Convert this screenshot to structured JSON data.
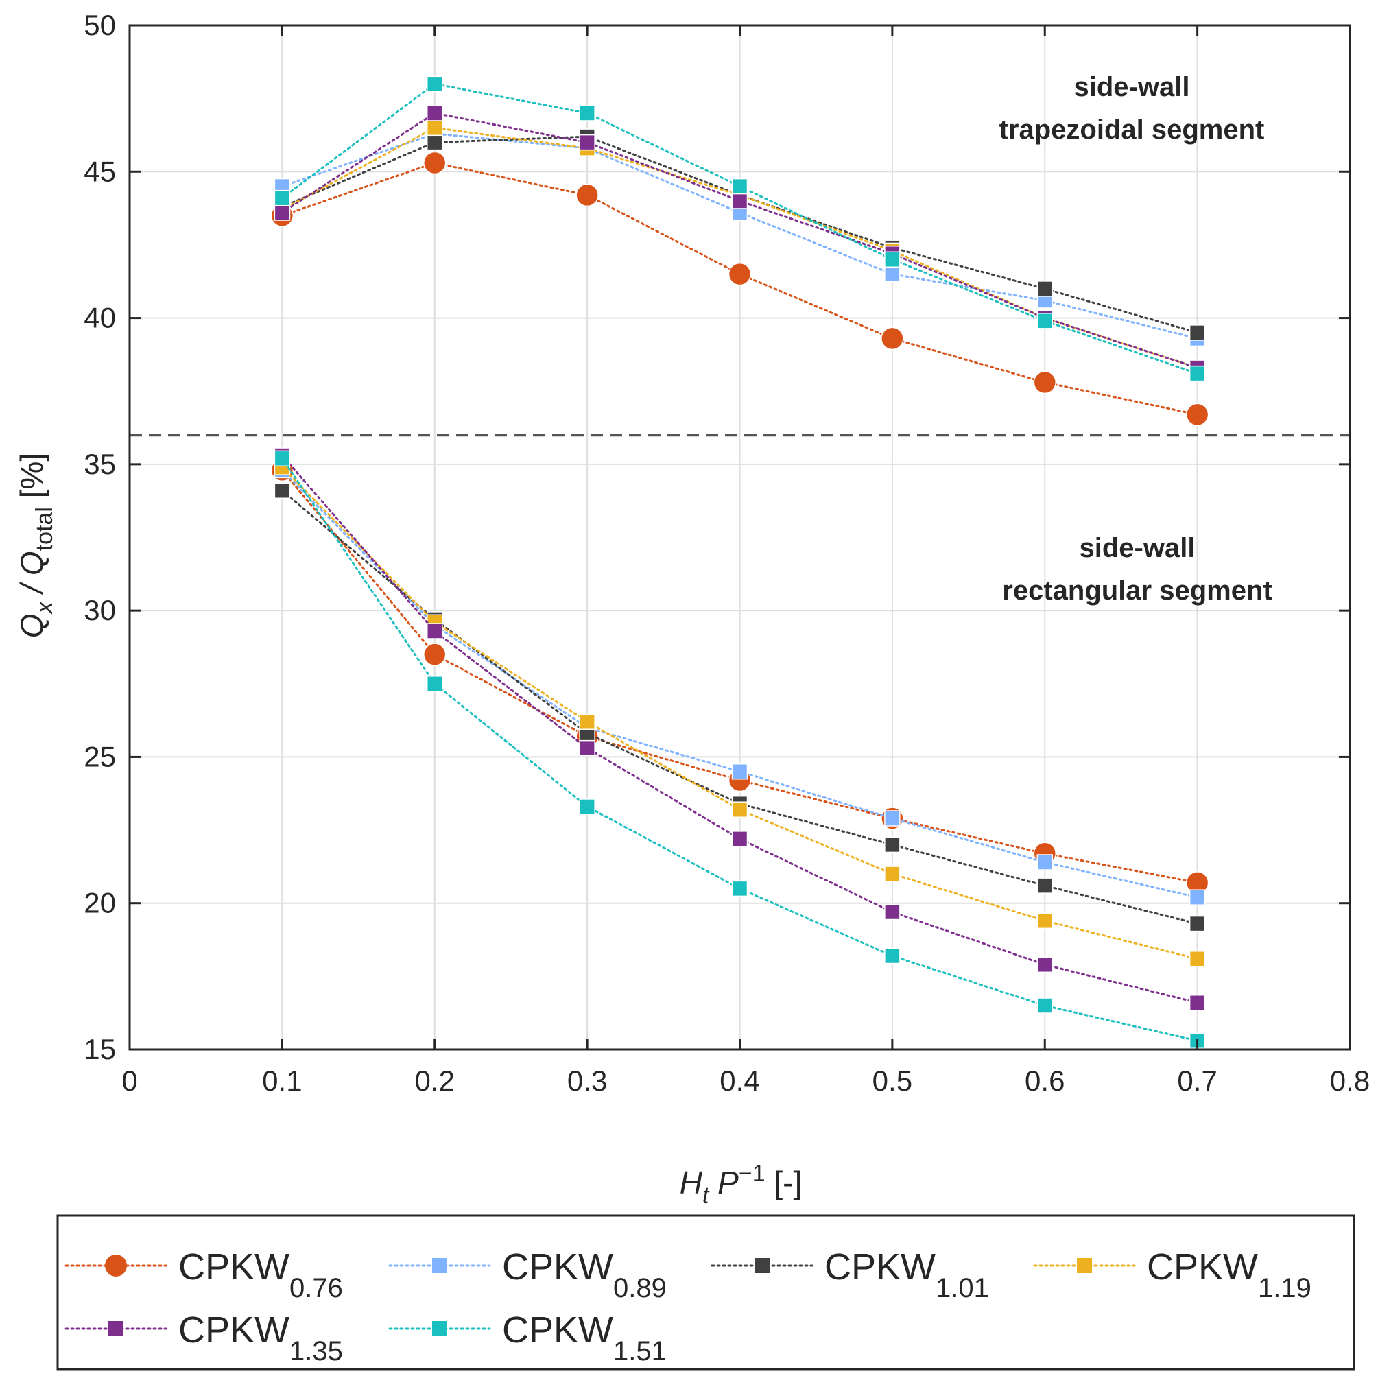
{
  "chart_data": {
    "type": "line",
    "title": "",
    "xlabel": {
      "base": "H",
      "sub": "t",
      "mid": " P",
      "sup": "−1",
      "tail": " [-]"
    },
    "ylabel": {
      "q1": "Q",
      "s1": "x",
      "mid": " / Q",
      "s2": "total",
      "tail": " [%]"
    },
    "xlim": [
      0,
      0.8
    ],
    "ylim": [
      15,
      50
    ],
    "xticks": [
      0,
      0.1,
      0.2,
      0.3,
      0.4,
      0.5,
      0.6,
      0.7,
      0.8
    ],
    "yticks": [
      15,
      20,
      25,
      30,
      35,
      40,
      45,
      50
    ],
    "xtick_labels": [
      "0",
      "0.1",
      "0.2",
      "0.3",
      "0.4",
      "0.5",
      "0.6",
      "0.7",
      "0.8"
    ],
    "ytick_labels": [
      "15",
      "20",
      "25",
      "30",
      "35",
      "40",
      "45",
      "50"
    ],
    "grid": true,
    "separator_y": 36,
    "x": [
      0.1,
      0.2,
      0.3,
      0.4,
      0.5,
      0.6,
      0.7
    ],
    "annotations": [
      {
        "lines": [
          "side-wall",
          "trapezoidal segment"
        ]
      },
      {
        "lines": [
          "side-wall",
          "rectangular segment"
        ]
      }
    ],
    "series": [
      {
        "name": "CPKW",
        "sub": "0.76",
        "color": "#D95319",
        "marker": "circle",
        "trapezoidal": [
          43.5,
          45.3,
          44.2,
          41.5,
          39.3,
          37.8,
          36.7
        ],
        "rectangular": [
          34.8,
          28.5,
          25.7,
          24.2,
          22.9,
          21.7,
          20.7
        ]
      },
      {
        "name": "CPKW",
        "sub": "0.89",
        "color": "#80B3FF",
        "marker": "square",
        "trapezoidal": [
          44.5,
          46.3,
          45.8,
          43.6,
          41.5,
          40.6,
          39.3
        ],
        "rectangular": [
          34.8,
          29.5,
          26.0,
          24.5,
          22.9,
          21.4,
          20.2
        ]
      },
      {
        "name": "CPKW",
        "sub": "1.01",
        "color": "#404040",
        "marker": "square",
        "trapezoidal": [
          43.8,
          46.0,
          46.2,
          44.2,
          42.4,
          41.0,
          39.5
        ],
        "rectangular": [
          34.1,
          29.7,
          25.8,
          23.4,
          22.0,
          20.6,
          19.3
        ]
      },
      {
        "name": "CPKW",
        "sub": "1.19",
        "color": "#EDB120",
        "marker": "square",
        "trapezoidal": [
          43.7,
          46.5,
          45.8,
          44.2,
          42.3,
          40.0,
          38.3
        ],
        "rectangular": [
          34.9,
          29.6,
          26.2,
          23.2,
          21.0,
          19.4,
          18.1
        ]
      },
      {
        "name": "CPKW",
        "sub": "1.35",
        "color": "#7E2F8E",
        "marker": "square",
        "trapezoidal": [
          43.6,
          47.0,
          46.0,
          44.0,
          42.2,
          40.0,
          38.3
        ],
        "rectangular": [
          35.3,
          29.3,
          25.3,
          22.2,
          19.7,
          17.9,
          16.6
        ]
      },
      {
        "name": "CPKW",
        "sub": "1.51",
        "color": "#1ABFBF",
        "marker": "square",
        "trapezoidal": [
          44.1,
          48.0,
          47.0,
          44.5,
          42.0,
          39.9,
          38.1
        ],
        "rectangular": [
          35.2,
          27.5,
          23.3,
          20.5,
          18.2,
          16.5,
          15.3
        ]
      }
    ]
  }
}
